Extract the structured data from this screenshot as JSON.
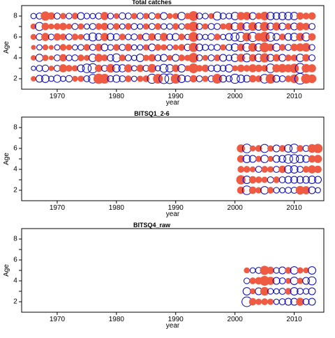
{
  "colors": {
    "positive": "#ef5a43",
    "negative": "#0000cc",
    "axis": "#000000"
  },
  "chart_data": [
    {
      "type": "scatter",
      "title": "Total catches",
      "xlabel": "year",
      "ylabel": "Age",
      "xlim": [
        1964,
        2015
      ],
      "ylim": [
        1,
        9
      ],
      "xticks": [
        1970,
        1980,
        1990,
        2000,
        2010
      ],
      "yticks": [
        2,
        4,
        6,
        8
      ],
      "x": [
        1966,
        1967,
        1968,
        1969,
        1970,
        1971,
        1972,
        1973,
        1974,
        1975,
        1976,
        1977,
        1978,
        1979,
        1980,
        1981,
        1982,
        1983,
        1984,
        1985,
        1986,
        1987,
        1988,
        1989,
        1990,
        1991,
        1992,
        1993,
        1994,
        1995,
        1996,
        1997,
        1998,
        1999,
        2000,
        2001,
        2002,
        2003,
        2004,
        2005,
        2006,
        2007,
        2008,
        2009,
        2010,
        2011,
        2012,
        2013
      ],
      "ages": [
        2,
        3,
        4,
        5,
        6,
        7,
        8
      ],
      "residuals": {
        "2": [
          0.25,
          -0.5,
          -0.6,
          -0.3,
          -0.55,
          -0.3,
          -0.45,
          0.3,
          0.35,
          -0.4,
          -0.8,
          1.0,
          0.9,
          -0.4,
          -0.55,
          -0.4,
          0.4,
          -0.3,
          0.35,
          0.4,
          -0.9,
          0.9,
          -1.0,
          -1.0,
          0.9,
          -0.6,
          -0.4,
          0.5,
          -0.4,
          0.35,
          -0.4,
          0.9,
          -0.5,
          -0.4,
          -0.9,
          -0.6,
          -0.5,
          0.5,
          0.4,
          -0.8,
          0.9,
          -0.5,
          -0.4,
          0.4,
          0.7,
          -1.2,
          0.9,
          0.7
        ],
        "3": [
          -0.2,
          -0.4,
          -0.45,
          0.25,
          -0.4,
          0.6,
          0.4,
          0.35,
          -0.5,
          -0.8,
          -0.9,
          0.5,
          -0.4,
          0.7,
          -0.6,
          -0.55,
          0.6,
          -0.3,
          0.5,
          -0.4,
          0.7,
          -0.3,
          -0.7,
          -0.6,
          0.5,
          -0.6,
          0.3,
          0.9,
          0.4,
          0.5,
          -0.4,
          -0.5,
          -0.4,
          -0.6,
          0.3,
          0.5,
          0.4,
          0.6,
          0.5,
          0.4,
          -0.8,
          0.6,
          0.7,
          0.6,
          0.8,
          -1.0,
          0.7,
          0.6
        ],
        "4": [
          0.25,
          -0.55,
          0.35,
          0.2,
          -0.4,
          0.5,
          -0.35,
          -0.4,
          0.4,
          0.3,
          -0.6,
          0.6,
          0.4,
          -0.45,
          -0.7,
          0.4,
          -0.4,
          -0.3,
          -0.6,
          0.35,
          0.5,
          -0.4,
          -0.5,
          0.3,
          -0.5,
          0.4,
          0.35,
          0.9,
          -0.4,
          0.3,
          -0.4,
          0.4,
          -0.5,
          -0.35,
          -0.6,
          0.6,
          -0.7,
          0.5,
          -0.6,
          0.8,
          -0.5,
          0.5,
          -0.5,
          0.4,
          0.4,
          -0.6,
          0.5,
          -0.4
        ],
        "5": [
          0.2,
          -0.3,
          0.3,
          0.2,
          -0.3,
          0.4,
          0.3,
          -0.3,
          -0.35,
          0.4,
          -0.4,
          0.5,
          -0.5,
          -0.35,
          0.4,
          -0.4,
          0.5,
          -0.3,
          -0.3,
          0.35,
          -0.5,
          0.4,
          0.35,
          -0.3,
          0.3,
          0.4,
          -0.45,
          0.8,
          -0.5,
          -0.4,
          -0.35,
          -0.4,
          0.35,
          -0.4,
          -0.6,
          0.5,
          -0.7,
          0.7,
          -0.6,
          0.9,
          0.5,
          -0.6,
          0.4,
          -0.4,
          0.5,
          0.6,
          0.7,
          -0.35
        ],
        "6": [
          0.3,
          -0.45,
          0.6,
          -0.35,
          0.5,
          0.4,
          -0.4,
          0.4,
          0.3,
          -0.4,
          -0.7,
          -0.5,
          0.6,
          -0.5,
          -0.45,
          0.4,
          -0.35,
          -0.4,
          0.35,
          -0.5,
          0.5,
          -0.45,
          0.6,
          -0.4,
          -0.5,
          0.4,
          -0.3,
          0.9,
          -0.4,
          -0.3,
          -0.45,
          0.4,
          -0.3,
          -0.5,
          -0.7,
          -0.9,
          0.7,
          -0.9,
          0.6,
          1.0,
          -0.8,
          -0.5,
          0.4,
          -0.5,
          -0.6,
          0.6,
          -0.7,
          0.5
        ],
        "7": [
          0.3,
          -0.7,
          0.5,
          0.3,
          0.4,
          0.5,
          0.3,
          -0.4,
          0.35,
          -0.3,
          -0.4,
          0.4,
          0.5,
          -0.35,
          0.4,
          -0.3,
          0.4,
          -0.4,
          -0.3,
          0.35,
          -0.4,
          0.4,
          -0.35,
          -0.35,
          0.4,
          -0.35,
          0.4,
          0.9,
          -0.4,
          0.35,
          -0.4,
          -0.4,
          0.35,
          0.5,
          -0.6,
          0.6,
          -0.6,
          0.7,
          -0.6,
          0.8,
          -0.5,
          0.6,
          -0.5,
          0.4,
          -0.5,
          0.6,
          0.5,
          -0.4
        ],
        "8": [
          -0.3,
          -0.4,
          0.8,
          0.5,
          -0.4,
          0.35,
          -0.35,
          0.4,
          -0.5,
          -0.35,
          -0.3,
          -0.4,
          0.6,
          -0.35,
          0.3,
          -0.45,
          -0.4,
          0.35,
          -0.4,
          0.35,
          -0.45,
          0.35,
          -0.5,
          0.3,
          0.35,
          -0.6,
          0.35,
          0.9,
          -0.4,
          -0.35,
          0.3,
          -0.7,
          -0.4,
          -0.35,
          -0.6,
          0.6,
          0.6,
          -0.5,
          0.4,
          0.7,
          -0.6,
          -0.5,
          -0.6,
          -0.6,
          -0.6,
          0.5,
          0.4,
          0.5
        ]
      }
    },
    {
      "type": "scatter",
      "title": "BITSQ1_2-6",
      "xlabel": "year",
      "ylabel": "Age",
      "xlim": [
        1964,
        2015
      ],
      "ylim": [
        1,
        9
      ],
      "xticks": [
        1970,
        1980,
        1990,
        2000,
        2010
      ],
      "yticks": [
        2,
        4,
        6,
        8
      ],
      "x": [
        2001,
        2002,
        2003,
        2004,
        2005,
        2006,
        2007,
        2008,
        2009,
        2010,
        2011,
        2012,
        2013,
        2014
      ],
      "ages": [
        2,
        3,
        4,
        5,
        6
      ],
      "residuals": {
        "2": [
          0.5,
          -0.8,
          0.5,
          0.35,
          -0.6,
          0.4,
          -0.35,
          -0.3,
          -0.4,
          -0.4,
          0.7,
          0.6,
          -0.5,
          -0.3
        ],
        "3": [
          0.8,
          -0.6,
          0.5,
          0.4,
          0.35,
          -0.4,
          0.4,
          -0.4,
          -0.5,
          -0.5,
          -0.5,
          -0.5,
          -0.6,
          -0.5
        ],
        "4": [
          0.4,
          0.4,
          0.3,
          -0.4,
          0.4,
          0.35,
          -0.4,
          0.5,
          -0.6,
          -0.6,
          -0.4,
          0.4,
          0.6,
          0.5
        ],
        "5": [
          0.5,
          -0.6,
          -0.5,
          0.35,
          -0.6,
          0.3,
          -0.5,
          -0.5,
          -0.8,
          -0.8,
          -0.6,
          -0.5,
          0.5,
          0.6
        ],
        "6": [
          0.6,
          -0.8,
          0.3,
          0.4,
          -0.7,
          0.35,
          -0.5,
          0.4,
          -0.6,
          -0.8,
          0.4,
          -0.4,
          0.7,
          0.8
        ]
      }
    },
    {
      "type": "scatter",
      "title": "BITSQ4_raw",
      "xlabel": "year",
      "ylabel": "Age",
      "xlim": [
        1964,
        2015
      ],
      "ylim": [
        1,
        9
      ],
      "xticks": [
        1970,
        1980,
        1990,
        2000,
        2010
      ],
      "yticks": [
        2,
        4,
        6,
        8
      ],
      "x": [
        2002,
        2003,
        2004,
        2005,
        2006,
        2007,
        2008,
        2009,
        2010,
        2011,
        2012,
        2013
      ],
      "ages": [
        2,
        3,
        4,
        5
      ],
      "residuals": {
        "2": [
          -1.0,
          0.5,
          0.35,
          0.4,
          0.35,
          -0.3,
          -0.4,
          -0.5,
          -0.5,
          0.6,
          -0.4,
          -0.5
        ],
        "3": [
          -0.6,
          0.3,
          -0.5,
          0.7,
          -0.35,
          -0.3,
          -0.4,
          0.4,
          -0.6,
          -0.4,
          -0.35,
          -0.5
        ],
        "4": [
          -0.35,
          0.4,
          0.5,
          0.9,
          0.6,
          -0.5,
          -0.4,
          0.3,
          -0.6,
          0.35,
          -0.5,
          -0.7
        ],
        "5": [
          0.3,
          -0.3,
          -0.4,
          0.8,
          0.5,
          -0.35,
          -0.5,
          0.4,
          -0.6,
          0.35,
          0.3,
          -0.6
        ]
      }
    }
  ]
}
